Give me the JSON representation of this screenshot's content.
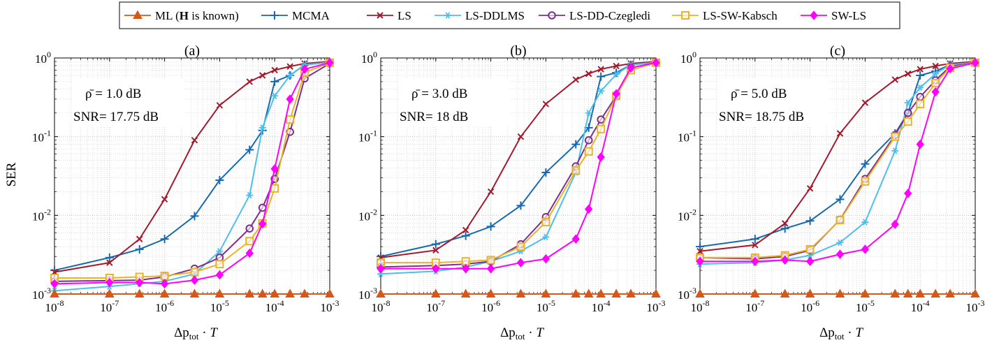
{
  "legend": [
    {
      "key": "ml",
      "label": "ML (H is known)",
      "label_parts": [
        "ML (",
        "H",
        " is known)"
      ],
      "color": "#d5581b",
      "marker": "triangle"
    },
    {
      "key": "mcma",
      "label": "MCMA",
      "color": "#1769ad",
      "marker": "plus"
    },
    {
      "key": "ls",
      "label": "LS",
      "color": "#a5182b",
      "marker": "x"
    },
    {
      "key": "lsddlms",
      "label": "LS-DDLMS",
      "color": "#4dbfed",
      "marker": "star"
    },
    {
      "key": "lsddcz",
      "label": "LS-DD-Czegledi",
      "color": "#7d2e8e",
      "marker": "circle"
    },
    {
      "key": "lsswk",
      "label": "LS-SW-Kabsch",
      "color": "#eab226",
      "marker": "square"
    },
    {
      "key": "swls",
      "label": "SW-LS",
      "color": "#ff00ff",
      "marker": "diamond"
    }
  ],
  "axes": {
    "xlabel": "Δp_tot · T",
    "xlabel_parts": {
      "delta": "Δp",
      "sub": "tot",
      "dot": " · ",
      "var": "T"
    },
    "ylabel": "SER",
    "x_ticks": [
      {
        "base": "10",
        "exp": "-8"
      },
      {
        "base": "10",
        "exp": "-7"
      },
      {
        "base": "10",
        "exp": "-6"
      },
      {
        "base": "10",
        "exp": "-5"
      },
      {
        "base": "10",
        "exp": "-4"
      },
      {
        "base": "10",
        "exp": "-3"
      }
    ],
    "y_ticks": [
      {
        "base": "10",
        "exp": "0"
      },
      {
        "base": "10",
        "exp": "-1"
      },
      {
        "base": "10",
        "exp": "-2"
      },
      {
        "base": "10",
        "exp": "-3"
      }
    ]
  },
  "chart_data": [
    {
      "type": "line",
      "panel_label": "(a)",
      "annotation_rho": "ρ̄ = 1.0 dB",
      "annotation_snr": "SNR= 17.75 dB",
      "x_scale": "log",
      "y_scale": "log",
      "xlim": [
        1e-08,
        0.001
      ],
      "ylim": [
        0.001,
        1
      ],
      "grid": true,
      "x": [
        1e-08,
        1e-07,
        3.5e-07,
        1e-06,
        3.5e-06,
        1e-05,
        3.5e-05,
        6e-05,
        0.0001,
        0.00019,
        0.00035,
        0.001
      ],
      "series": [
        {
          "name": "ML (H is known)",
          "values": [
            0.001,
            0.001,
            0.001,
            0.001,
            0.001,
            0.001,
            0.001,
            0.001,
            0.001,
            0.001,
            0.001,
            0.001
          ]
        },
        {
          "name": "MCMA",
          "values": [
            0.002,
            0.0029,
            0.0037,
            0.005,
            0.0098,
            0.028,
            0.068,
            0.12,
            0.5,
            0.6,
            0.82,
            0.88
          ]
        },
        {
          "name": "LS",
          "values": [
            0.0019,
            0.0025,
            0.005,
            0.016,
            0.09,
            0.25,
            0.5,
            0.6,
            0.7,
            0.78,
            0.85,
            0.9
          ]
        },
        {
          "name": "LS-DDLMS",
          "values": [
            0.0011,
            0.00125,
            0.00135,
            0.00145,
            0.0018,
            0.0035,
            0.018,
            0.13,
            0.33,
            0.6,
            0.82,
            0.88
          ]
        },
        {
          "name": "LS-DD-Czegledi",
          "values": [
            0.00145,
            0.00148,
            0.0015,
            0.00165,
            0.0021,
            0.0029,
            0.0068,
            0.0125,
            0.029,
            0.115,
            0.55,
            0.85
          ]
        },
        {
          "name": "LS-SW-Kabsch",
          "values": [
            0.0016,
            0.0016,
            0.00165,
            0.0017,
            0.0019,
            0.0024,
            0.0047,
            0.0079,
            0.022,
            0.165,
            0.65,
            0.87
          ]
        },
        {
          "name": "SW-LS",
          "values": [
            0.00135,
            0.0014,
            0.0014,
            0.00135,
            0.0015,
            0.00175,
            0.0033,
            0.0078,
            0.039,
            0.3,
            0.72,
            0.87
          ]
        }
      ]
    },
    {
      "type": "line",
      "panel_label": "(b)",
      "annotation_rho": "ρ̄ = 3.0 dB",
      "annotation_snr": "SNR= 18 dB",
      "x_scale": "log",
      "y_scale": "log",
      "xlim": [
        1e-08,
        0.001
      ],
      "ylim": [
        0.001,
        1
      ],
      "grid": true,
      "x": [
        1e-08,
        1e-07,
        3.5e-07,
        1e-06,
        3.5e-06,
        1e-05,
        3.5e-05,
        6e-05,
        0.0001,
        0.00019,
        0.00035,
        0.001
      ],
      "series": [
        {
          "name": "ML (H is known)",
          "values": [
            0.001,
            0.001,
            0.001,
            0.001,
            0.001,
            0.001,
            0.001,
            0.001,
            0.001,
            0.001,
            0.001,
            0.001
          ]
        },
        {
          "name": "MCMA",
          "values": [
            0.003,
            0.0043,
            0.0055,
            0.0072,
            0.0133,
            0.035,
            0.08,
            0.13,
            0.58,
            0.65,
            0.82,
            0.88
          ]
        },
        {
          "name": "LS",
          "values": [
            0.0029,
            0.0036,
            0.0065,
            0.02,
            0.1,
            0.26,
            0.53,
            0.63,
            0.72,
            0.79,
            0.85,
            0.9
          ]
        },
        {
          "name": "LS-DDLMS",
          "values": [
            0.0018,
            0.00195,
            0.0022,
            0.0026,
            0.0035,
            0.0053,
            0.035,
            0.2,
            0.38,
            0.62,
            0.82,
            0.88
          ]
        },
        {
          "name": "LS-DD-Czegledi",
          "values": [
            0.0022,
            0.0023,
            0.0024,
            0.0026,
            0.0043,
            0.0095,
            0.042,
            0.09,
            0.165,
            0.33,
            0.75,
            0.87
          ]
        },
        {
          "name": "LS-SW-Kabsch",
          "values": [
            0.0025,
            0.0025,
            0.0026,
            0.0027,
            0.004,
            0.0082,
            0.037,
            0.065,
            0.125,
            0.33,
            0.7,
            0.87
          ]
        },
        {
          "name": "SW-LS",
          "values": [
            0.0021,
            0.0021,
            0.0021,
            0.0021,
            0.0025,
            0.0028,
            0.005,
            0.012,
            0.055,
            0.35,
            0.75,
            0.87
          ]
        }
      ]
    },
    {
      "type": "line",
      "panel_label": "(c)",
      "annotation_rho": "ρ̄ = 5.0 dB",
      "annotation_snr": "SNR= 18.75 dB",
      "x_scale": "log",
      "y_scale": "log",
      "xlim": [
        1e-08,
        0.001
      ],
      "ylim": [
        0.001,
        1
      ],
      "grid": true,
      "x": [
        1e-08,
        1e-07,
        3.5e-07,
        1e-06,
        3.5e-06,
        1e-05,
        3.5e-05,
        6e-05,
        0.0001,
        0.00019,
        0.00035,
        0.001
      ],
      "series": [
        {
          "name": "ML (H is known)",
          "values": [
            0.001,
            0.001,
            0.001,
            0.001,
            0.001,
            0.001,
            0.001,
            0.001,
            0.001,
            0.001,
            0.001,
            0.001
          ]
        },
        {
          "name": "MCMA",
          "values": [
            0.004,
            0.005,
            0.0068,
            0.0085,
            0.016,
            0.045,
            0.11,
            0.2,
            0.6,
            0.68,
            0.82,
            0.88
          ]
        },
        {
          "name": "LS",
          "values": [
            0.0035,
            0.0042,
            0.0079,
            0.022,
            0.11,
            0.27,
            0.53,
            0.63,
            0.72,
            0.79,
            0.85,
            0.9
          ]
        },
        {
          "name": "LS-DDLMS",
          "values": [
            0.0024,
            0.0025,
            0.0027,
            0.0031,
            0.0045,
            0.0082,
            0.066,
            0.27,
            0.42,
            0.63,
            0.82,
            0.88
          ]
        },
        {
          "name": "LS-DD-Czegledi",
          "values": [
            0.0029,
            0.0028,
            0.003,
            0.0036,
            0.0088,
            0.029,
            0.105,
            0.2,
            0.32,
            0.52,
            0.78,
            0.87
          ]
        },
        {
          "name": "LS-SW-Kabsch",
          "values": [
            0.0029,
            0.0029,
            0.0031,
            0.0037,
            0.0087,
            0.027,
            0.1,
            0.155,
            0.26,
            0.48,
            0.75,
            0.87
          ]
        },
        {
          "name": "SW-LS",
          "values": [
            0.0026,
            0.0026,
            0.0027,
            0.0026,
            0.0032,
            0.0037,
            0.0077,
            0.019,
            0.08,
            0.37,
            0.73,
            0.87
          ]
        }
      ]
    }
  ]
}
